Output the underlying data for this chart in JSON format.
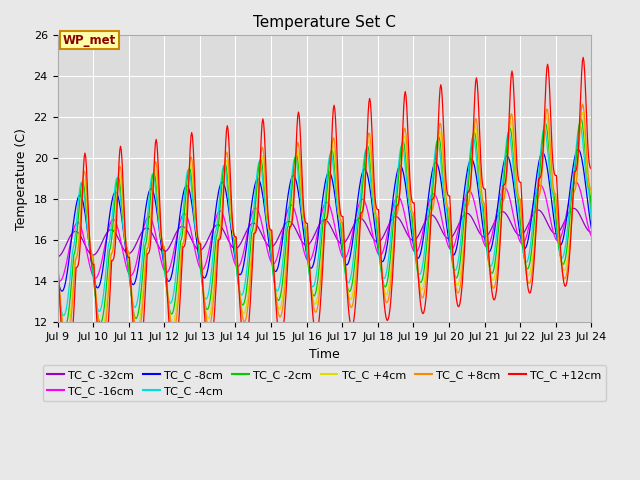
{
  "title": "Temperature Set C",
  "xlabel": "Time",
  "ylabel": "Temperature (C)",
  "ylim": [
    12,
    26
  ],
  "xlim_start": 9,
  "xlim_end": 24,
  "fig_facecolor": "#e8e8e8",
  "plot_facecolor": "#dcdcdc",
  "annotation_text": "WP_met",
  "annotation_color": "#8b0000",
  "annotation_bg": "#ffffaa",
  "annotation_edge": "#cc8800",
  "series": [
    {
      "label": "TC_C -32cm",
      "color": "#9900cc",
      "amp": 0.6,
      "base_start": 15.8,
      "base_end": 17.0,
      "phase_lag": 0.0,
      "sharpness": 1
    },
    {
      "label": "TC_C -16cm",
      "color": "#ff00ff",
      "amp": 1.4,
      "base_start": 15.4,
      "base_end": 17.5,
      "phase_lag": 0.4,
      "sharpness": 1
    },
    {
      "label": "TC_C -8cm",
      "color": "#0000ff",
      "amp": 2.3,
      "base_start": 15.8,
      "base_end": 18.2,
      "phase_lag": 0.8,
      "sharpness": 1
    },
    {
      "label": "TC_C -4cm",
      "color": "#00dddd",
      "amp": 3.2,
      "base_start": 15.5,
      "base_end": 18.5,
      "phase_lag": 1.1,
      "sharpness": 2
    },
    {
      "label": "TC_C -2cm",
      "color": "#00cc00",
      "amp": 3.5,
      "base_start": 15.2,
      "base_end": 18.5,
      "phase_lag": 1.3,
      "sharpness": 2
    },
    {
      "label": "TC_C +4cm",
      "color": "#dddd00",
      "amp": 3.8,
      "base_start": 15.0,
      "base_end": 18.5,
      "phase_lag": 1.5,
      "sharpness": 3
    },
    {
      "label": "TC_C +8cm",
      "color": "#ff8800",
      "amp": 4.2,
      "base_start": 15.0,
      "base_end": 18.5,
      "phase_lag": 1.6,
      "sharpness": 3
    },
    {
      "label": "TC_C +12cm",
      "color": "#ff0000",
      "amp": 5.5,
      "base_start": 14.5,
      "base_end": 19.5,
      "phase_lag": 1.7,
      "sharpness": 4
    }
  ],
  "grid_color": "#ffffff",
  "tick_fontsize": 8,
  "legend_fontsize": 8,
  "title_fontsize": 11
}
